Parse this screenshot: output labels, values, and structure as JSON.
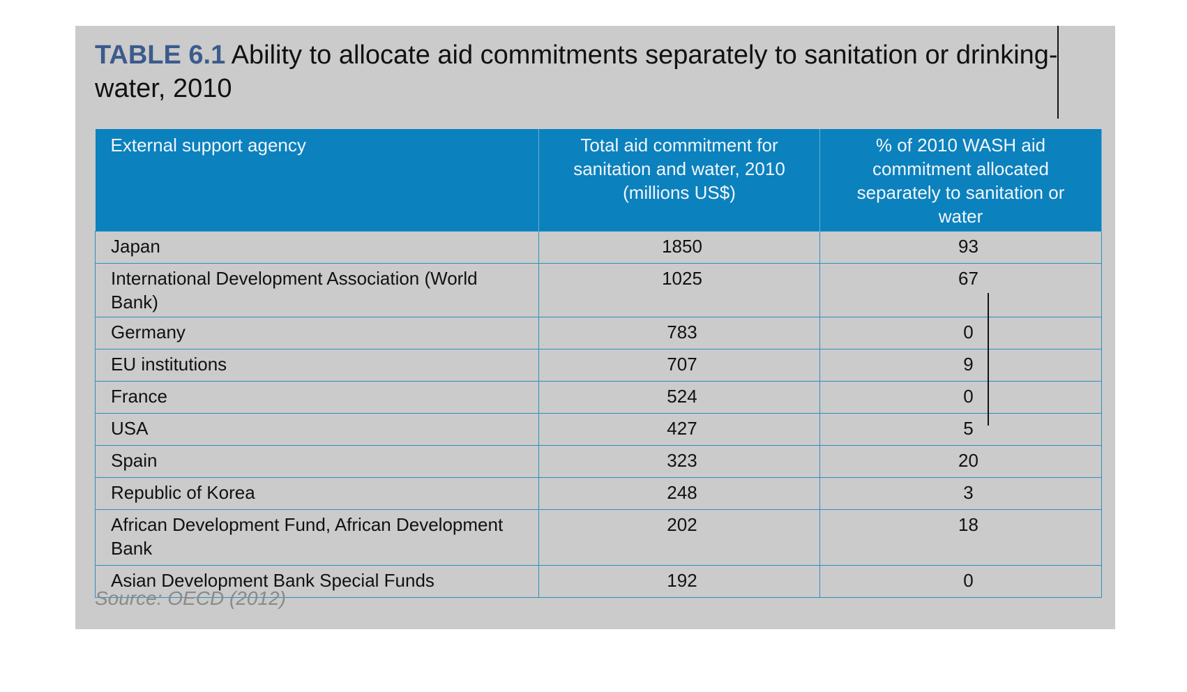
{
  "title": {
    "tag": "TABLE 6.1",
    "text": " Ability to allocate aid commitments separately to sanitation or drinking-water, 2010"
  },
  "table": {
    "headers": [
      "External support agency",
      "Total aid commitment for sanitation and water, 2010 (millions US$)",
      "% of 2010 WASH aid commitment allocated separately to sanitation or water"
    ],
    "rows": [
      [
        "Japan",
        "1850",
        "93"
      ],
      [
        "International Development Association (World Bank)",
        "1025",
        "67"
      ],
      [
        "Germany",
        "783",
        "0"
      ],
      [
        "EU institutions",
        "707",
        "9"
      ],
      [
        "France",
        "524",
        "0"
      ],
      [
        "USA",
        "427",
        "5"
      ],
      [
        "Spain",
        "323",
        "20"
      ],
      [
        "Republic of Korea",
        "248",
        "3"
      ],
      [
        "African Development Fund, African Development Bank",
        "202",
        "18"
      ],
      [
        "Asian Development Bank Special Funds",
        "192",
        "0"
      ]
    ]
  },
  "source": "Source: OECD (2012)",
  "colors": {
    "panel_background": "#cbcbcb",
    "header_background": "#0b81be",
    "table_tag": "#3b5b8c",
    "grid_lines": "#2c8fbf",
    "source_text": "#8a8a8a"
  }
}
